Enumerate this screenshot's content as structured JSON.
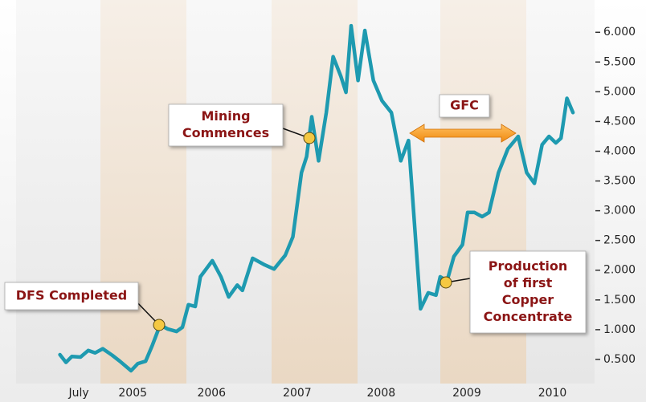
{
  "chart_data": {
    "type": "line",
    "x": [
      2004.53,
      2004.6,
      2004.67,
      2004.77,
      2004.86,
      2004.94,
      2005.03,
      2005.14,
      2005.23,
      2005.36,
      2005.44,
      2005.53,
      2005.61,
      2005.7,
      2005.79,
      2005.89,
      2005.96,
      2006.03,
      2006.11,
      2006.17,
      2006.31,
      2006.41,
      2006.5,
      2006.6,
      2006.66,
      2006.78,
      2006.92,
      2007.03,
      2007.16,
      2007.25,
      2007.35,
      2007.41,
      2007.47,
      2007.55,
      2007.64,
      2007.72,
      2007.81,
      2007.87,
      2007.93,
      2008.01,
      2008.09,
      2008.19,
      2008.29,
      2008.4,
      2008.51,
      2008.6,
      2008.65,
      2008.74,
      2008.83,
      2008.92,
      2008.97,
      2009.05,
      2009.13,
      2009.23,
      2009.29,
      2009.37,
      2009.46,
      2009.54,
      2009.65,
      2009.76,
      2009.88,
      2009.98,
      2010.07,
      2010.16,
      2010.24,
      2010.32,
      2010.38,
      2010.45,
      2010.52
    ],
    "series": [
      {
        "color": "#1e9ab0",
        "values": [
          0.58,
          0.45,
          0.55,
          0.54,
          0.65,
          0.61,
          0.68,
          0.57,
          0.47,
          0.31,
          0.43,
          0.47,
          0.74,
          1.08,
          1.01,
          0.97,
          1.04,
          1.42,
          1.39,
          1.89,
          2.16,
          1.89,
          1.55,
          1.75,
          1.66,
          2.2,
          2.09,
          2.02,
          2.25,
          2.56,
          3.64,
          3.91,
          4.58,
          3.84,
          4.65,
          5.59,
          5.26,
          4.99,
          6.11,
          5.19,
          6.03,
          5.19,
          4.85,
          4.65,
          3.84,
          4.18,
          3.17,
          1.35,
          1.62,
          1.58,
          1.89,
          1.82,
          2.23,
          2.43,
          2.97,
          2.97,
          2.9,
          2.97,
          3.64,
          4.04,
          4.25,
          3.64,
          3.46,
          4.11,
          4.25,
          4.14,
          4.22,
          4.89,
          4.65
        ]
      }
    ],
    "xlim": [
      2003.83,
      2010.96
    ],
    "xticks": [
      {
        "value": 2004.75,
        "label": "July"
      },
      {
        "value": 2005.38,
        "label": "2005"
      },
      {
        "value": 2006.3,
        "label": "2006"
      },
      {
        "value": 2007.3,
        "label": "2007"
      },
      {
        "value": 2008.28,
        "label": "2008"
      },
      {
        "value": 2009.28,
        "label": "2009"
      },
      {
        "value": 2010.28,
        "label": "2010"
      }
    ],
    "ylim": [
      0,
      6.3
    ],
    "yticks": [
      {
        "value": 0.5,
        "label": "0.500"
      },
      {
        "value": 1.0,
        "label": "1.000"
      },
      {
        "value": 1.5,
        "label": "1.500"
      },
      {
        "value": 2.0,
        "label": "2.000"
      },
      {
        "value": 2.5,
        "label": "2.500"
      },
      {
        "value": 3.0,
        "label": "3.000"
      },
      {
        "value": 3.5,
        "label": "3.500"
      },
      {
        "value": 4.0,
        "label": "4.000"
      },
      {
        "value": 4.5,
        "label": "4.500"
      },
      {
        "value": 5.0,
        "label": "5.000"
      },
      {
        "value": 5.5,
        "label": "5.500"
      },
      {
        "value": 6.0,
        "label": "6.000"
      }
    ],
    "annotations": [
      {
        "lines": [
          "DFS Completed"
        ]
      },
      {
        "lines": [
          "Mining",
          "Commences"
        ]
      },
      {
        "lines": [
          "GFC"
        ]
      },
      {
        "lines": [
          "Production",
          "of first",
          "Copper",
          "Concentrate"
        ]
      }
    ]
  }
}
